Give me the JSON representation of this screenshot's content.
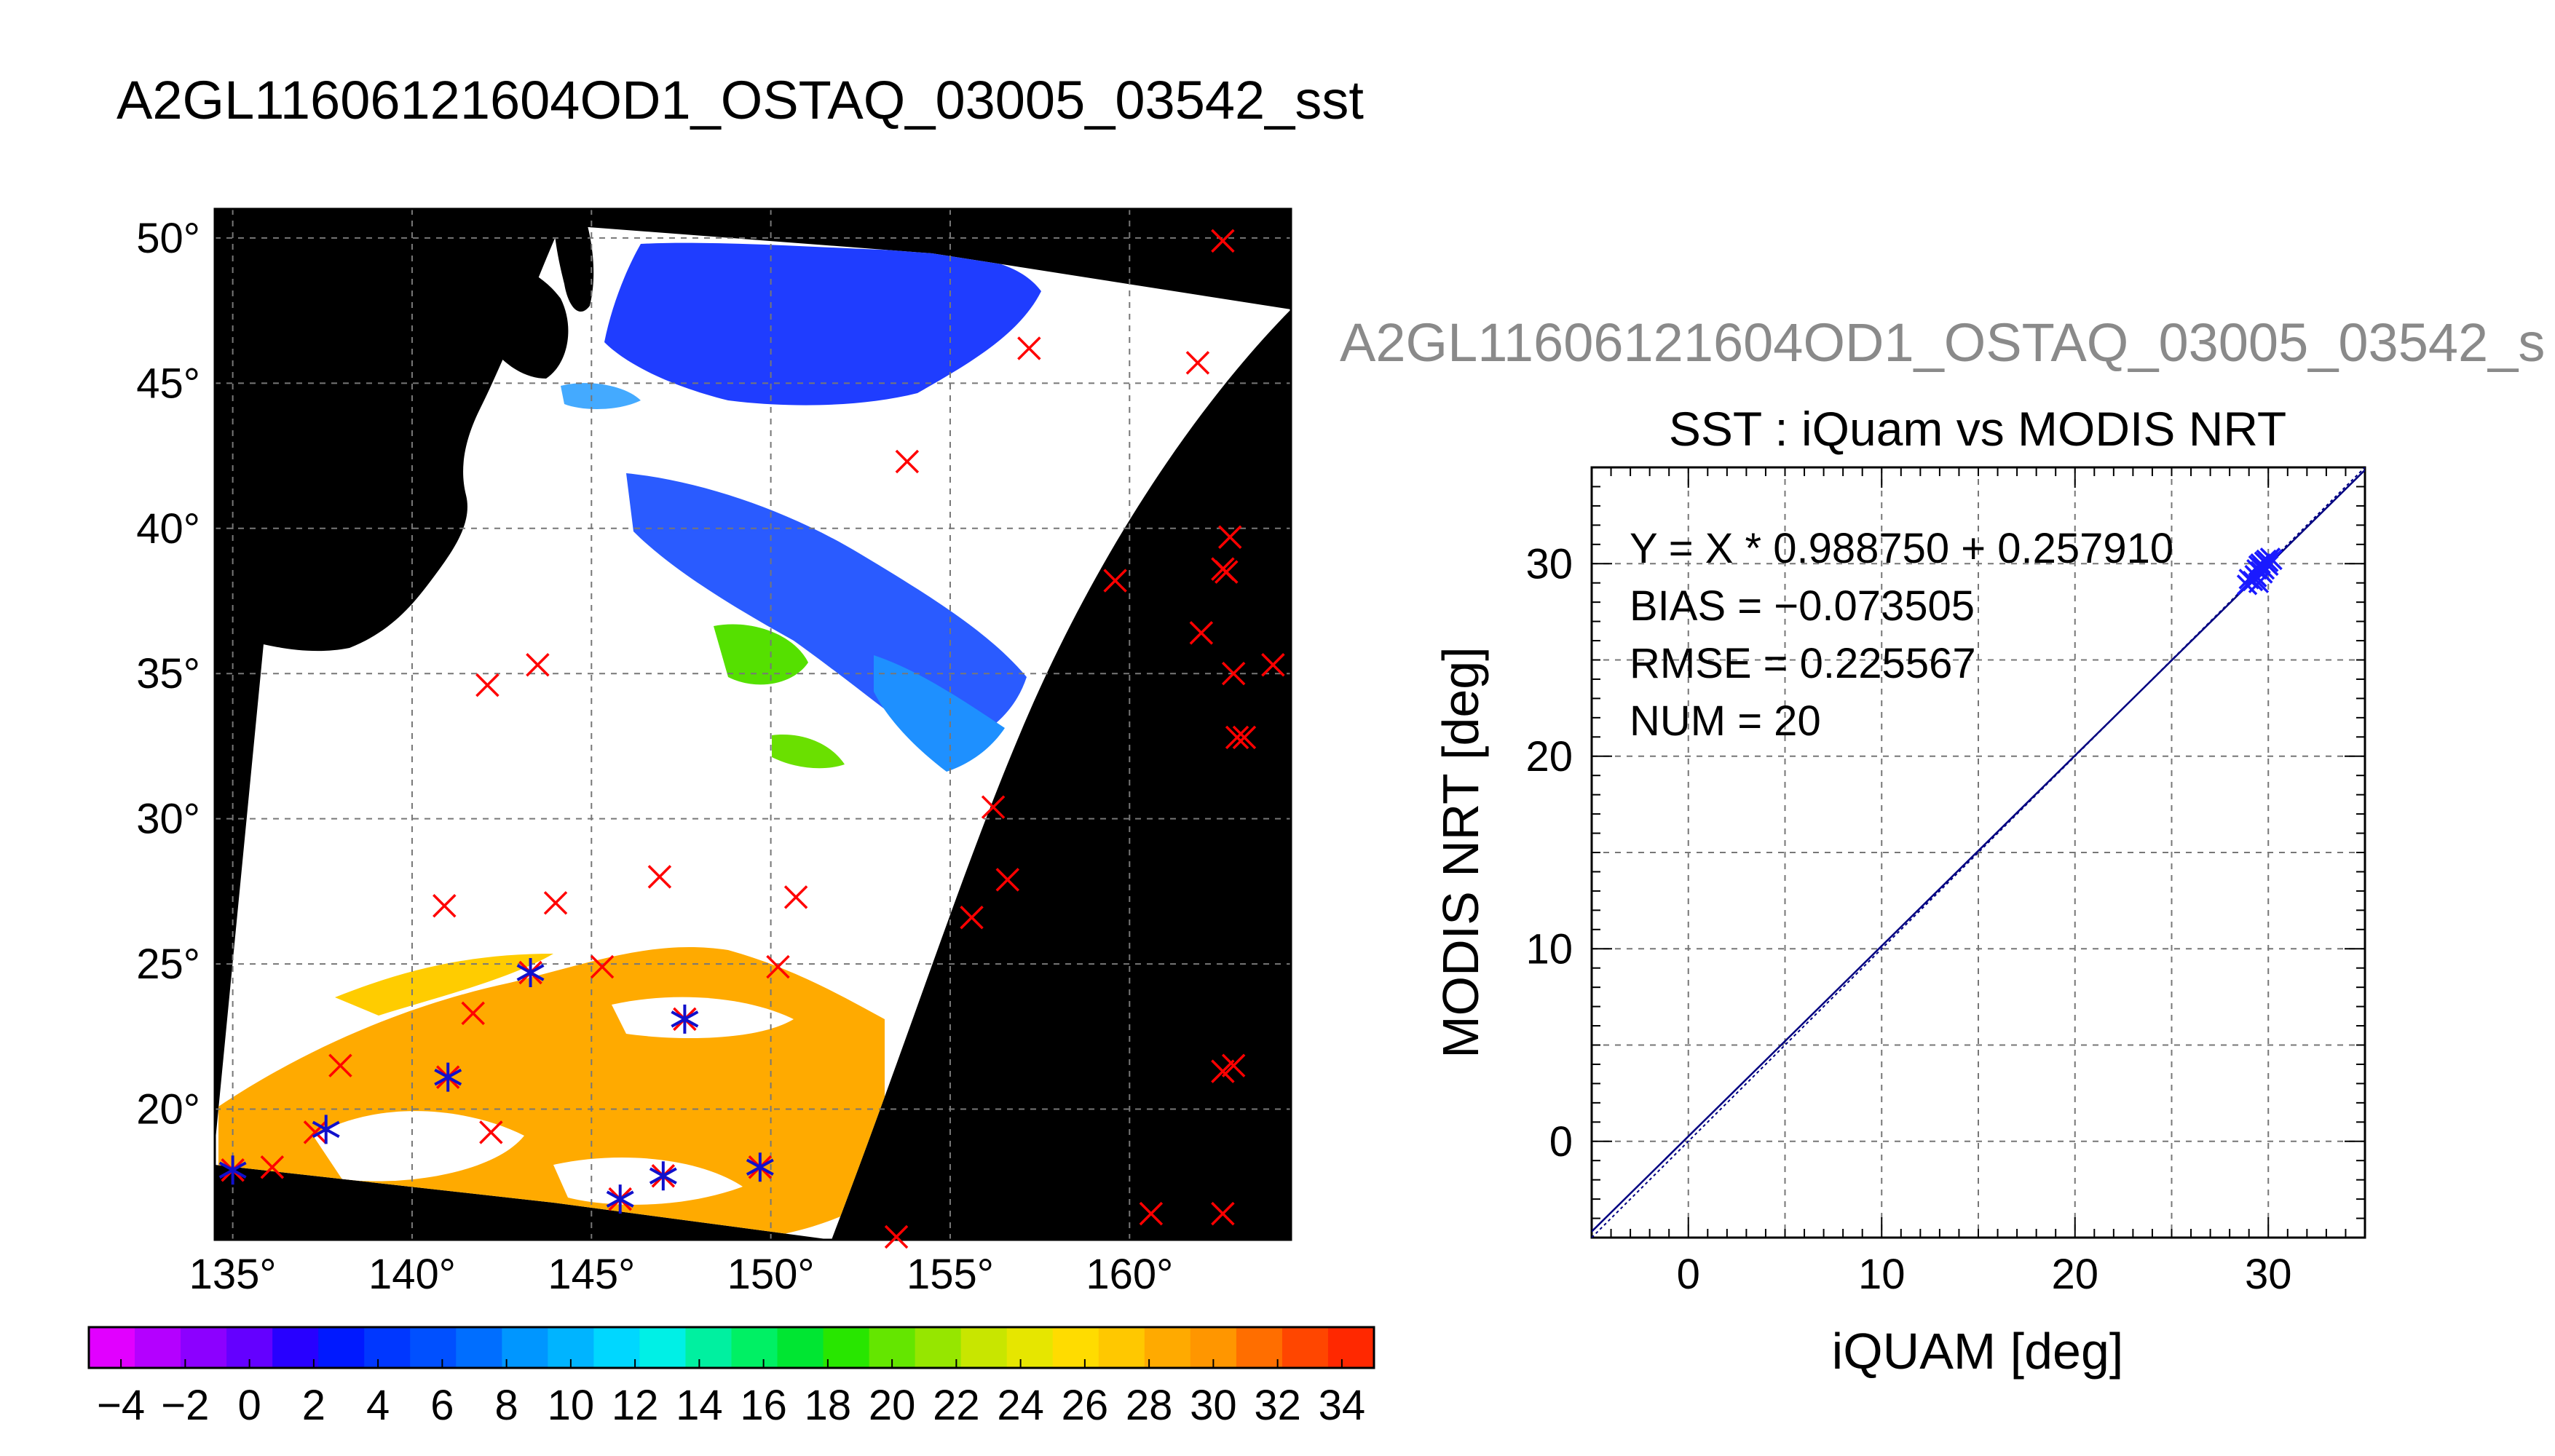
{
  "figure_title": "A2GL11606121604OD1_OSTAQ_03005_03542_sst",
  "right_figure_title": "A2GL11606121604OD1_OSTAQ_03005_03542_s",
  "chart_data": [
    {
      "type": "map",
      "lon_ticks": [
        "135°",
        "140°",
        "145°",
        "150°",
        "155°",
        "160°"
      ],
      "lat_ticks": [
        "50°",
        "45°",
        "40°",
        "35°",
        "30°",
        "25°",
        "20°"
      ],
      "lon_range": [
        134.5,
        164.5
      ],
      "lat_range": [
        15.5,
        51.0
      ],
      "grid": true,
      "colorbar": {
        "ticks": [
          "−4",
          "−2",
          "0",
          "2",
          "4",
          "6",
          "8",
          "10",
          "12",
          "14",
          "16",
          "18",
          "20",
          "22",
          "24",
          "26",
          "28",
          "30",
          "32",
          "34"
        ],
        "range": [
          -5,
          35
        ],
        "colors": [
          "#e100ff",
          "#b400ff",
          "#8c00ff",
          "#6400ff",
          "#2800ff",
          "#0019ff",
          "#0037ff",
          "#0050ff",
          "#006eff",
          "#0096ff",
          "#00b4ff",
          "#00d7ff",
          "#00f0e6",
          "#00f0a0",
          "#00f064",
          "#00e632",
          "#28e600",
          "#64e600",
          "#96e600",
          "#c8e600",
          "#e6e600",
          "#ffdc00",
          "#ffc800",
          "#ffaa00",
          "#ff9600",
          "#ff6e00",
          "#ff4600",
          "#ff2800"
        ]
      },
      "iquam_points_red_x": [
        {
          "lon": 162.6,
          "lat": 49.9
        },
        {
          "lon": 157.2,
          "lat": 46.2
        },
        {
          "lon": 161.9,
          "lat": 45.7
        },
        {
          "lon": 153.8,
          "lat": 42.3
        },
        {
          "lon": 162.8,
          "lat": 39.7
        },
        {
          "lon": 162.6,
          "lat": 38.6
        },
        {
          "lon": 162.7,
          "lat": 38.5
        },
        {
          "lon": 159.6,
          "lat": 38.2
        },
        {
          "lon": 162.0,
          "lat": 36.4
        },
        {
          "lon": 164.0,
          "lat": 35.3
        },
        {
          "lon": 143.5,
          "lat": 35.3
        },
        {
          "lon": 162.9,
          "lat": 35.0
        },
        {
          "lon": 142.1,
          "lat": 34.6
        },
        {
          "lon": 163.0,
          "lat": 32.8
        },
        {
          "lon": 163.2,
          "lat": 32.8
        },
        {
          "lon": 156.2,
          "lat": 30.4
        },
        {
          "lon": 146.9,
          "lat": 28.0
        },
        {
          "lon": 156.6,
          "lat": 27.9
        },
        {
          "lon": 150.7,
          "lat": 27.3
        },
        {
          "lon": 144.0,
          "lat": 27.1
        },
        {
          "lon": 140.9,
          "lat": 27.0
        },
        {
          "lon": 155.6,
          "lat": 26.6
        },
        {
          "lon": 145.3,
          "lat": 24.9
        },
        {
          "lon": 150.2,
          "lat": 24.9
        },
        {
          "lon": 143.3,
          "lat": 24.7
        },
        {
          "lon": 141.7,
          "lat": 23.3
        },
        {
          "lon": 147.6,
          "lat": 23.1
        },
        {
          "lon": 138.0,
          "lat": 21.5
        },
        {
          "lon": 162.9,
          "lat": 21.5
        },
        {
          "lon": 162.6,
          "lat": 21.3
        },
        {
          "lon": 141.0,
          "lat": 21.1
        },
        {
          "lon": 142.2,
          "lat": 19.2
        },
        {
          "lon": 137.3,
          "lat": 19.2
        },
        {
          "lon": 136.1,
          "lat": 18.0
        },
        {
          "lon": 135.0,
          "lat": 17.9
        },
        {
          "lon": 149.7,
          "lat": 18.0
        },
        {
          "lon": 147.0,
          "lat": 17.7
        },
        {
          "lon": 145.8,
          "lat": 16.9
        },
        {
          "lon": 160.6,
          "lat": 16.4
        },
        {
          "lon": 162.6,
          "lat": 16.4
        },
        {
          "lon": 153.5,
          "lat": 15.6
        }
      ],
      "matched_points_blue_star": [
        {
          "lon": 143.3,
          "lat": 24.7
        },
        {
          "lon": 147.6,
          "lat": 23.1
        },
        {
          "lon": 141.0,
          "lat": 21.1
        },
        {
          "lon": 137.6,
          "lat": 19.3
        },
        {
          "lon": 135.0,
          "lat": 17.9
        },
        {
          "lon": 149.7,
          "lat": 18.0
        },
        {
          "lon": 147.0,
          "lat": 17.7
        },
        {
          "lon": 145.8,
          "lat": 16.9
        }
      ]
    },
    {
      "type": "scatter",
      "title": "SST : iQuam vs MODIS NRT",
      "xlabel": "iQUAM [deg]",
      "ylabel": "MODIS NRT [deg]",
      "xlim": [
        -5,
        35
      ],
      "ylim": [
        -5,
        35
      ],
      "x_ticks": [
        "0",
        "10",
        "20",
        "30"
      ],
      "y_ticks": [
        "0",
        "10",
        "20",
        "30"
      ],
      "grid": true,
      "stats": [
        "Y = X * 0.988750 + 0.257910",
        "BIAS = −0.073505",
        "RMSE = 0.225567",
        "NUM = 20"
      ],
      "fit": {
        "slope": 0.98875,
        "intercept": 0.25791
      },
      "points": [
        {
          "x": 28.9,
          "y": 28.9
        },
        {
          "x": 29.0,
          "y": 29.2
        },
        {
          "x": 29.2,
          "y": 29.1
        },
        {
          "x": 29.3,
          "y": 29.4
        },
        {
          "x": 29.4,
          "y": 29.3
        },
        {
          "x": 29.4,
          "y": 29.7
        },
        {
          "x": 29.5,
          "y": 29.9
        },
        {
          "x": 29.5,
          "y": 29.0
        },
        {
          "x": 29.6,
          "y": 29.6
        },
        {
          "x": 29.6,
          "y": 30.0
        },
        {
          "x": 29.7,
          "y": 29.8
        },
        {
          "x": 29.7,
          "y": 29.5
        },
        {
          "x": 29.8,
          "y": 30.1
        },
        {
          "x": 29.8,
          "y": 29.7
        },
        {
          "x": 29.9,
          "y": 30.0
        },
        {
          "x": 29.9,
          "y": 30.2
        },
        {
          "x": 30.0,
          "y": 30.1
        },
        {
          "x": 30.0,
          "y": 29.9
        },
        {
          "x": 30.1,
          "y": 30.3
        },
        {
          "x": 30.2,
          "y": 30.2
        }
      ]
    }
  ]
}
